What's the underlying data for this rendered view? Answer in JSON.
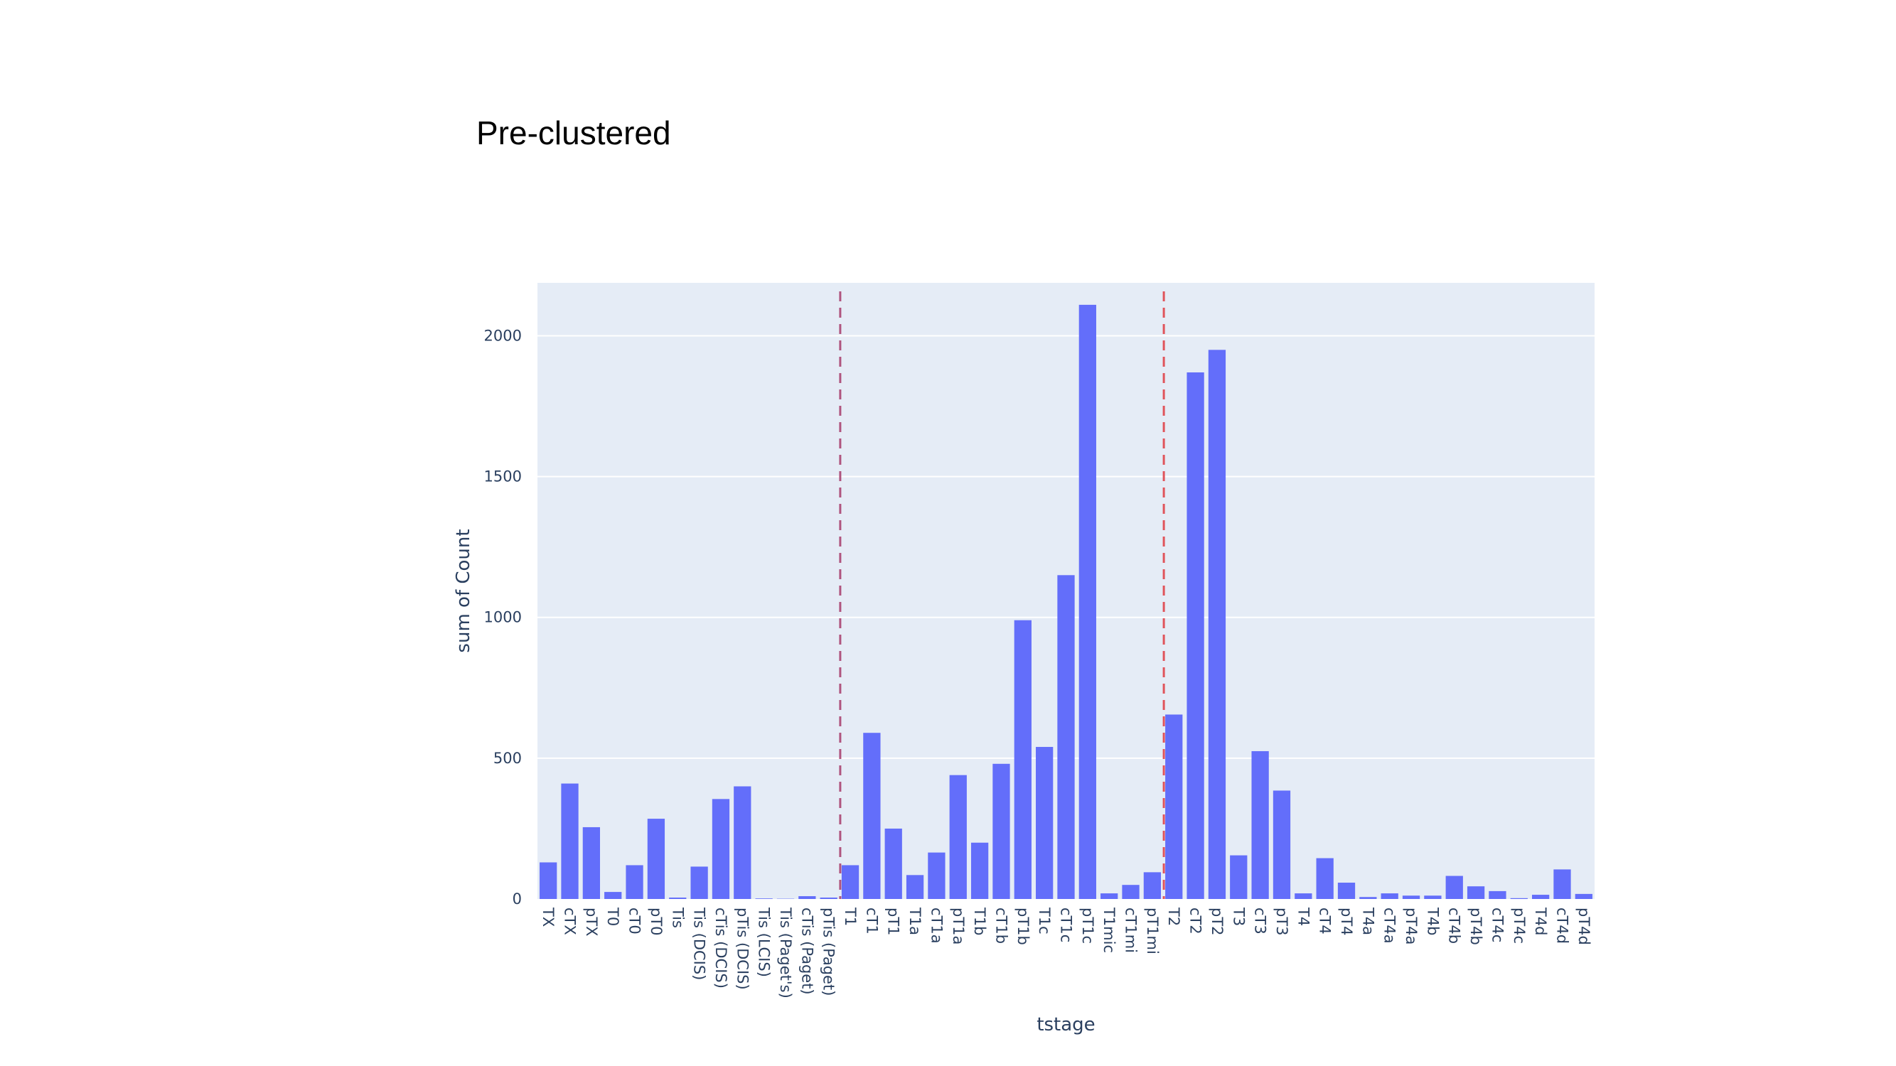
{
  "title": "Pre-clustered",
  "chart_data": {
    "type": "bar",
    "xlabel": "tstage",
    "ylabel": "sum of Count",
    "ylim": [
      0,
      2200
    ],
    "yticks": [
      0,
      500,
      1000,
      1500,
      2000
    ],
    "grid": true,
    "colors": {
      "bar": "#636efa",
      "plot_bg": "#e5ecf6",
      "vline_1": "#b0557f",
      "vline_2": "#e0545b"
    },
    "categories": [
      "TX",
      "cTX",
      "pTX",
      "T0",
      "cT0",
      "pT0",
      "Tis",
      "Tis (DCIS)",
      "cTis (DCIS)",
      "pTis (DCIS)",
      "Tis (LCIS)",
      "Tis (Paget's)",
      "cTis (Paget)",
      "pTis (Paget)",
      "T1",
      "cT1",
      "pT1",
      "T1a",
      "cT1a",
      "pT1a",
      "T1b",
      "cT1b",
      "pT1b",
      "T1c",
      "cT1c",
      "pT1c",
      "T1mic",
      "cT1mi",
      "pT1mi",
      "T2",
      "cT2",
      "pT2",
      "T3",
      "cT3",
      "pT3",
      "T4",
      "cT4",
      "pT4",
      "T4a",
      "cT4a",
      "pT4a",
      "T4b",
      "cT4b",
      "pT4b",
      "cT4c",
      "pT4c",
      "T4d",
      "cT4d",
      "pT4d"
    ],
    "values": [
      130,
      410,
      255,
      25,
      120,
      285,
      5,
      115,
      355,
      400,
      2,
      1,
      10,
      5,
      120,
      590,
      250,
      85,
      165,
      440,
      200,
      480,
      990,
      540,
      1150,
      2110,
      20,
      50,
      95,
      655,
      1870,
      1950,
      155,
      525,
      385,
      20,
      145,
      58,
      7,
      20,
      12,
      12,
      82,
      45,
      28,
      3,
      15,
      105,
      18
    ],
    "reference_lines": [
      "T1",
      "T2"
    ]
  }
}
